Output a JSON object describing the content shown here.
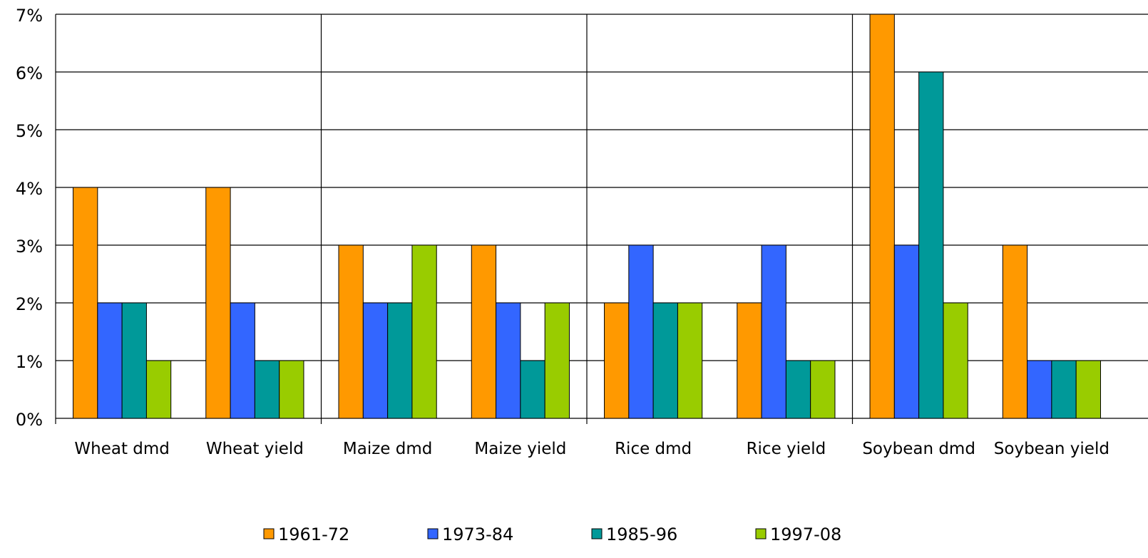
{
  "chart_data": {
    "type": "bar",
    "categories": [
      "Wheat dmd",
      "Wheat yield",
      "Maize dmd",
      "Maize yield",
      "Rice dmd",
      "Rice yield",
      "Soybean dmd",
      "Soybean yield"
    ],
    "series": [
      {
        "name": "1961-72",
        "color": "#ff9900",
        "values": [
          4,
          4,
          3,
          3,
          2,
          2,
          7,
          3
        ]
      },
      {
        "name": "1973-84",
        "color": "#3366ff",
        "values": [
          2,
          2,
          2,
          2,
          3,
          3,
          3,
          1
        ]
      },
      {
        "name": "1985-96",
        "color": "#009999",
        "values": [
          2,
          1,
          2,
          1,
          2,
          1,
          6,
          1
        ]
      },
      {
        "name": "1997-08",
        "color": "#99cc00",
        "values": [
          1,
          1,
          3,
          2,
          2,
          1,
          2,
          1
        ]
      }
    ],
    "ylim": [
      0,
      7
    ],
    "yticks": [
      {
        "value": 0,
        "label": "0%"
      },
      {
        "value": 1,
        "label": "1%"
      },
      {
        "value": 2,
        "label": "2%"
      },
      {
        "value": 3,
        "label": "3%"
      },
      {
        "value": 4,
        "label": "4%"
      },
      {
        "value": 5,
        "label": "5%"
      },
      {
        "value": 6,
        "label": "6%"
      },
      {
        "value": 7,
        "label": "7%"
      }
    ],
    "grid": true
  }
}
